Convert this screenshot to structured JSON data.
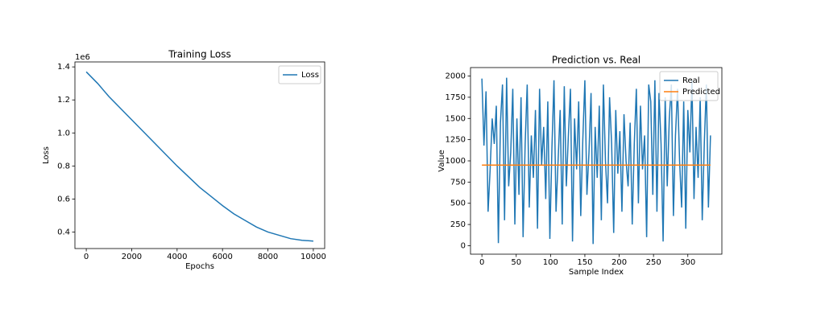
{
  "chart_data": [
    {
      "type": "line",
      "title": "Training Loss",
      "x_label": "Epochs",
      "y_label": "Loss",
      "y_offset_label": "1e6",
      "x": [
        0,
        500,
        1000,
        1500,
        2000,
        2500,
        3000,
        3500,
        4000,
        4500,
        5000,
        5500,
        6000,
        6500,
        7000,
        7500,
        8000,
        8500,
        9000,
        9500,
        10000
      ],
      "series": [
        {
          "name": "Loss",
          "color": "#1f77b4",
          "values": [
            1.37,
            1.3,
            1.22,
            1.15,
            1.08,
            1.01,
            0.94,
            0.87,
            0.8,
            0.735,
            0.67,
            0.615,
            0.56,
            0.51,
            0.47,
            0.43,
            0.4,
            0.38,
            0.36,
            0.35,
            0.345
          ]
        }
      ],
      "xlim": [
        -500,
        10500
      ],
      "xticks": [
        0,
        2000,
        4000,
        6000,
        8000,
        10000
      ],
      "ylim": [
        0.3,
        1.43
      ],
      "yticks": [
        0.4,
        0.6,
        0.8,
        {
          "value": 1.0,
          "label": "1.0"
        },
        1.2,
        1.4
      ],
      "legend": "upper right"
    },
    {
      "type": "line",
      "title": "Prediction vs. Real",
      "x_label": "Sample Index",
      "y_label": "Value",
      "x": [
        0,
        3,
        6,
        9,
        12,
        15,
        18,
        21,
        24,
        27,
        30,
        33,
        36,
        39,
        42,
        45,
        48,
        51,
        54,
        57,
        60,
        63,
        66,
        69,
        72,
        75,
        78,
        81,
        84,
        87,
        90,
        93,
        96,
        99,
        102,
        105,
        108,
        111,
        114,
        117,
        120,
        123,
        126,
        129,
        132,
        135,
        138,
        141,
        144,
        147,
        150,
        153,
        156,
        159,
        162,
        165,
        168,
        171,
        174,
        177,
        180,
        183,
        186,
        189,
        192,
        195,
        198,
        201,
        204,
        207,
        210,
        213,
        216,
        219,
        222,
        225,
        228,
        231,
        234,
        237,
        240,
        243,
        246,
        249,
        252,
        255,
        258,
        261,
        264,
        267,
        270,
        273,
        276,
        279,
        282,
        285,
        288,
        291,
        294,
        297,
        300,
        303,
        306,
        309,
        312,
        315,
        318,
        321,
        324,
        327,
        330,
        333
      ],
      "series": [
        {
          "name": "Real",
          "color": "#1f77b4",
          "values": [
            1970,
            1180,
            1820,
            400,
            900,
            1500,
            1200,
            1650,
            30,
            1450,
            1900,
            300,
            1980,
            700,
            1100,
            1850,
            250,
            1500,
            600,
            1750,
            100,
            1200,
            1900,
            450,
            1300,
            800,
            1600,
            200,
            1850,
            950,
            1400,
            550,
            1700,
            80,
            1150,
            1950,
            400,
            1000,
            1600,
            250,
            1880,
            700,
            1300,
            1850,
            50,
            1500,
            900,
            1700,
            350,
            1250,
            1950,
            600,
            1100,
            1800,
            20,
            1400,
            800,
            1650,
            300,
            1900,
            1000,
            500,
            1750,
            1200,
            150,
            1600,
            850,
            1350,
            400,
            1550,
            1000,
            700,
            1450,
            250,
            1200,
            1850,
            500,
            1650,
            900,
            1300,
            100,
            1900,
            1700,
            600,
            1950,
            400,
            1800,
            1200,
            50,
            1750,
            700,
            1500,
            1900,
            350,
            1300,
            1850,
            1000,
            450,
            1700,
            200,
            1600,
            1100,
            1950,
            550,
            1400,
            800,
            1750,
            300,
            1200,
            1900,
            450,
            1300
          ]
        },
        {
          "name": "Predicted",
          "color": "#ff7f0e",
          "x": [
            0,
            333
          ],
          "values": [
            950,
            950
          ]
        }
      ],
      "xlim": [
        -16.6,
        349.6
      ],
      "xticks": [
        0,
        50,
        100,
        150,
        200,
        250,
        300
      ],
      "ylim": [
        -100,
        2100
      ],
      "yticks": [
        0,
        250,
        500,
        750,
        1000,
        1250,
        1500,
        1750,
        2000
      ],
      "legend": "upper right"
    }
  ]
}
